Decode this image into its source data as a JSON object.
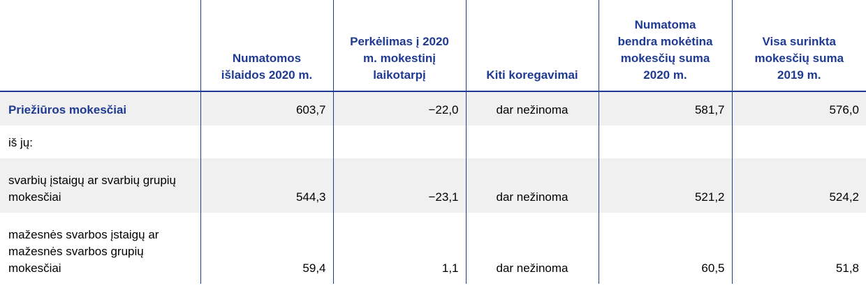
{
  "table": {
    "columns": [
      "Numatomos išlaidos 2020 m.",
      "Perkėlimas į 2020 m. mokestinį laikotarpį",
      "Kiti koregavimai",
      "Numatoma bendra mokėtina mokesčių suma 2020 m.",
      "Visa surinkta mokesčių suma 2019 m."
    ],
    "rows": [
      {
        "label": "Priežiūros mokesčiai",
        "values": [
          "603,7",
          "−22,0",
          "dar nežinoma",
          "581,7",
          "576,0"
        ]
      },
      {
        "label": "iš jų:"
      },
      {
        "label": "svarbių įstaigų ar svarbių grupių mokesčiai",
        "values": [
          "544,3",
          "−23,1",
          "dar nežinoma",
          "521,2",
          "524,2"
        ]
      },
      {
        "label": "mažesnės svarbos įstaigų ar mažesnės svarbos grupių mokesčiai",
        "values": [
          "59,4",
          "1,1",
          "dar nežinoma",
          "60,5",
          "51,8"
        ]
      }
    ]
  }
}
